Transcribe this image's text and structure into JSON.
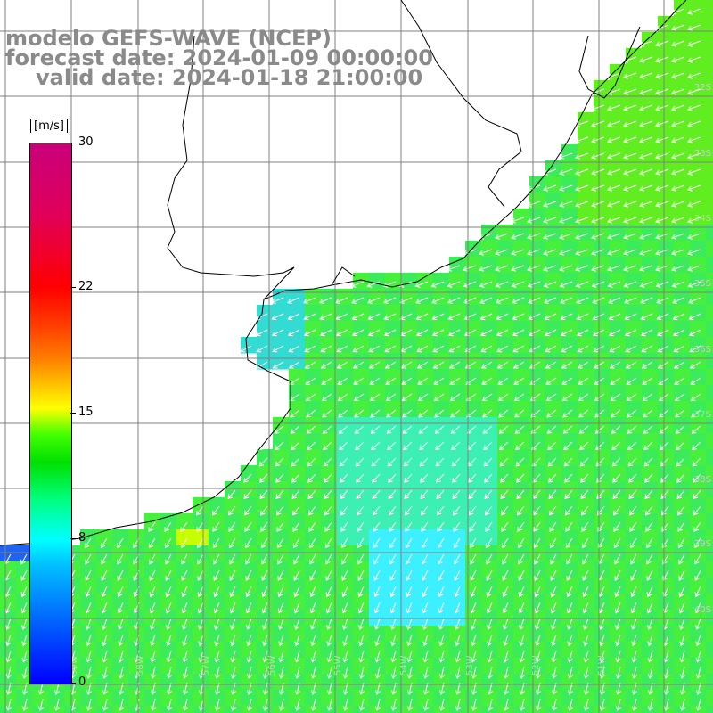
{
  "header": {
    "line1": "modelo GEFS-WAVE (NCEP)",
    "line2": "forecast date: 2024-01-09 00:00:00",
    "line3": "valid date: 2024-01-18 21:00:00"
  },
  "colorbar": {
    "unit": "[m/s]",
    "min": 0,
    "max": 30,
    "ticks": [
      {
        "label": "30",
        "value": 30
      },
      {
        "label": "22",
        "value": 22
      },
      {
        "label": "15",
        "value": 15
      },
      {
        "label": "8",
        "value": 8
      },
      {
        "label": "0",
        "value": 0
      }
    ]
  },
  "map": {
    "lat_labels": [
      "32S",
      "33S",
      "34S",
      "35S",
      "36S",
      "37S",
      "38S",
      "39S",
      "40S"
    ],
    "lon_labels": [
      "59W",
      "58W",
      "57W",
      "56W",
      "55W",
      "54W",
      "53W",
      "52W",
      "51W"
    ],
    "colors": {
      "land": "#ffffff",
      "coast": "#000000",
      "grid": "#808080",
      "arrows": "#ffffff",
      "title_text": "#8a8a8a"
    }
  }
}
